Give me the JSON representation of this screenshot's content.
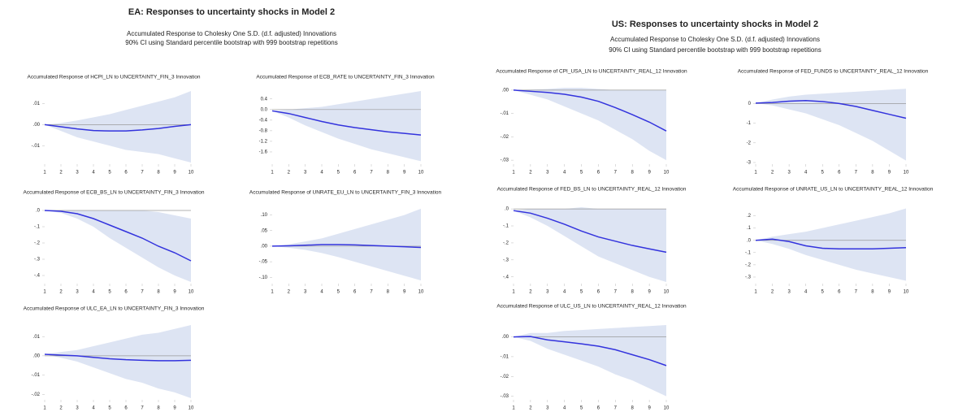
{
  "headers": [
    {
      "title": "EA: Responses to uncertainty shocks in Model 2",
      "notes": [
        "Accumulated Response to Cholesky One S.D. (d.f. adjusted) Innovations",
        "90% CI using Standard percentile bootstrap with 999 bootstrap repetitions"
      ]
    },
    {
      "title": "US: Responses to uncertainty shocks in Model 2",
      "notes": [
        "Accumulated Response to Cholesky One S.D. (d.f. adjusted) Innovations",
        "90% CI using Standard percentile bootstrap with 999 bootstrap repetitions"
      ]
    }
  ],
  "chart_data": [
    {
      "type": "line",
      "title": "Accumulated Response of HCPI_LN to UNCERTAINTY_FIN_3 Innovation",
      "color": "#3333dd",
      "band_color": "#dde4f3",
      "x": [
        1,
        2,
        3,
        4,
        5,
        6,
        7,
        8,
        9,
        10
      ],
      "xlim": [
        1,
        10
      ],
      "xticks": [
        1,
        2,
        3,
        4,
        5,
        6,
        7,
        8,
        9,
        10
      ],
      "values": [
        0,
        -0.001,
        -0.002,
        -0.0028,
        -0.003,
        -0.003,
        -0.0025,
        -0.0018,
        -0.0008,
        0
      ],
      "ci_upper": [
        0,
        0.0008,
        0.002,
        0.0035,
        0.005,
        0.007,
        0.009,
        0.011,
        0.013,
        0.016
      ],
      "ci_lower": [
        0,
        -0.003,
        -0.006,
        -0.008,
        -0.01,
        -0.012,
        -0.013,
        -0.014,
        -0.016,
        -0.018
      ],
      "ylim": [
        -0.018,
        0.016
      ],
      "yticks": [
        {
          "value": 0.01,
          "label": ".01"
        },
        {
          "value": 0,
          "label": ".00"
        },
        {
          "value": -0.01,
          "label": "-.01"
        }
      ]
    },
    {
      "type": "line",
      "title": "Accumulated Response of ECB_RATE to UNCERTAINTY_FIN_3 Innovation",
      "color": "#3333dd",
      "band_color": "#dde4f3",
      "x": [
        1,
        2,
        3,
        4,
        5,
        6,
        7,
        8,
        9,
        10
      ],
      "xlim": [
        1,
        10
      ],
      "xticks": [
        1,
        2,
        3,
        4,
        5,
        6,
        7,
        8,
        9,
        10
      ],
      "values": [
        -0.05,
        -0.15,
        -0.3,
        -0.45,
        -0.58,
        -0.68,
        -0.76,
        -0.84,
        -0.9,
        -0.96
      ],
      "ci_upper": [
        -0.05,
        0,
        0.05,
        0.1,
        0.2,
        0.3,
        0.4,
        0.5,
        0.6,
        0.7
      ],
      "ci_lower": [
        -0.05,
        -0.3,
        -0.6,
        -0.85,
        -1.1,
        -1.3,
        -1.5,
        -1.65,
        -1.8,
        -1.95
      ],
      "ylim": [
        -2.0,
        0.7
      ],
      "yticks": [
        0.4,
        {
          "value": 0,
          "label": "0.0"
        },
        -0.4,
        -0.8,
        -1.2,
        -1.6
      ]
    },
    {
      "type": "line",
      "title": "Accumulated Response of ECB_BS_LN to UNCERTAINTY_FIN_3 Innovation",
      "color": "#3333dd",
      "band_color": "#dde4f3",
      "x": [
        1,
        2,
        3,
        4,
        5,
        6,
        7,
        8,
        9,
        10
      ],
      "xlim": [
        1,
        10
      ],
      "xticks": [
        1,
        2,
        3,
        4,
        5,
        6,
        7,
        8,
        9,
        10
      ],
      "values": [
        0,
        -0.005,
        -0.02,
        -0.05,
        -0.09,
        -0.13,
        -0.17,
        -0.22,
        -0.26,
        -0.31
      ],
      "ci_upper": [
        0,
        0,
        0,
        0,
        0,
        0,
        0,
        -0.01,
        -0.03,
        -0.05
      ],
      "ci_lower": [
        0,
        -0.015,
        -0.05,
        -0.1,
        -0.17,
        -0.23,
        -0.29,
        -0.35,
        -0.4,
        -0.44
      ],
      "ylim": [
        -0.44,
        0.02
      ],
      "yticks": [
        {
          "value": 0,
          "label": ".0"
        },
        {
          "value": -0.1,
          "label": "-.1"
        },
        {
          "value": -0.2,
          "label": "-.2"
        },
        {
          "value": -0.3,
          "label": "-.3"
        },
        {
          "value": -0.4,
          "label": "-.4"
        }
      ]
    },
    {
      "type": "line",
      "title": "Accumulated Response of UNRATE_EU_LN to UNCERTAINTY_FIN_3 Innovation",
      "color": "#3333dd",
      "band_color": "#dde4f3",
      "x": [
        1,
        2,
        3,
        4,
        5,
        6,
        7,
        8,
        9,
        10
      ],
      "xlim": [
        1,
        10
      ],
      "xticks": [
        1,
        2,
        3,
        4,
        5,
        6,
        7,
        8,
        9,
        10
      ],
      "values": [
        0,
        0.001,
        0.003,
        0.005,
        0.005,
        0.004,
        0.002,
        0,
        -0.002,
        -0.004
      ],
      "ci_upper": [
        0,
        0.006,
        0.015,
        0.025,
        0.04,
        0.055,
        0.07,
        0.085,
        0.1,
        0.12
      ],
      "ci_lower": [
        0,
        -0.005,
        -0.012,
        -0.022,
        -0.035,
        -0.05,
        -0.065,
        -0.08,
        -0.095,
        -0.11
      ],
      "ylim": [
        -0.115,
        0.125
      ],
      "yticks": [
        {
          "value": 0.1,
          "label": ".10"
        },
        {
          "value": 0.05,
          "label": ".05"
        },
        {
          "value": 0,
          "label": ".00"
        },
        {
          "value": -0.05,
          "label": "-.05"
        },
        {
          "value": -0.1,
          "label": "-.10"
        }
      ]
    },
    {
      "type": "line",
      "title": "Accumulated Response of ULC_EA_LN to UNCERTAINTY_FIN_3 Innovation",
      "color": "#3333dd",
      "band_color": "#dde4f3",
      "x": [
        1,
        2,
        3,
        4,
        5,
        6,
        7,
        8,
        9,
        10
      ],
      "xlim": [
        1,
        10
      ],
      "xticks": [
        1,
        2,
        3,
        4,
        5,
        6,
        7,
        8,
        9,
        10
      ],
      "values": [
        0.0008,
        0.0004,
        0,
        -0.0008,
        -0.0015,
        -0.002,
        -0.0023,
        -0.0025,
        -0.0025,
        -0.0023
      ],
      "ci_upper": [
        0.0008,
        0.002,
        0.003,
        0.005,
        0.007,
        0.009,
        0.011,
        0.012,
        0.014,
        0.016
      ],
      "ci_lower": [
        0.0008,
        -0.001,
        -0.003,
        -0.006,
        -0.009,
        -0.012,
        -0.014,
        -0.017,
        -0.019,
        -0.022
      ],
      "ylim": [
        -0.022,
        0.016
      ],
      "yticks": [
        {
          "value": 0.01,
          "label": ".01"
        },
        {
          "value": 0,
          "label": ".00"
        },
        {
          "value": -0.01,
          "label": "-.01"
        },
        {
          "value": -0.02,
          "label": "-.02"
        }
      ]
    },
    {
      "type": "line",
      "title": "Accumulated Response of CPI_USA_LN to UNCERTAINTY_REAL_12 Innovation",
      "color": "#3333dd",
      "band_color": "#dde4f3",
      "x": [
        1,
        2,
        3,
        4,
        5,
        6,
        7,
        8,
        9,
        10
      ],
      "xlim": [
        1,
        10
      ],
      "xticks": [
        1,
        2,
        3,
        4,
        5,
        6,
        7,
        8,
        9,
        10
      ],
      "values": [
        0,
        -0.0005,
        -0.001,
        -0.0018,
        -0.003,
        -0.0048,
        -0.0075,
        -0.0105,
        -0.0137,
        -0.0175
      ],
      "ci_upper": [
        0,
        0.0002,
        0.0005,
        0.001,
        0.001,
        0.0005,
        0,
        0,
        0,
        0
      ],
      "ci_lower": [
        0,
        -0.002,
        -0.004,
        -0.007,
        -0.01,
        -0.013,
        -0.017,
        -0.021,
        -0.026,
        -0.03
      ],
      "ylim": [
        -0.031,
        0.001
      ],
      "yticks": [
        {
          "value": 0,
          "label": ".00"
        },
        {
          "value": -0.01,
          "label": "-.01"
        },
        {
          "value": -0.02,
          "label": "-.02"
        },
        {
          "value": -0.03,
          "label": "-.03"
        }
      ]
    },
    {
      "type": "line",
      "title": "Accumulated Response of FED_FUNDS to UNCERTAINTY_REAL_12 Innovation",
      "color": "#3333dd",
      "band_color": "#dde4f3",
      "x": [
        1,
        2,
        3,
        4,
        5,
        6,
        7,
        8,
        9,
        10
      ],
      "xlim": [
        1,
        10
      ],
      "xticks": [
        1,
        2,
        3,
        4,
        5,
        6,
        7,
        8,
        9,
        10
      ],
      "values": [
        0.02,
        0.05,
        0.12,
        0.15,
        0.1,
        0,
        -0.15,
        -0.35,
        -0.55,
        -0.75
      ],
      "ci_upper": [
        0.02,
        0.2,
        0.35,
        0.45,
        0.5,
        0.55,
        0.6,
        0.65,
        0.7,
        0.75
      ],
      "ci_lower": [
        0.02,
        -0.1,
        -0.3,
        -0.5,
        -0.8,
        -1.1,
        -1.5,
        -1.9,
        -2.4,
        -2.9
      ],
      "ylim": [
        -3.0,
        0.8
      ],
      "yticks": [
        0,
        -1,
        -2,
        -3
      ]
    },
    {
      "type": "line",
      "title": "Accumulated Response of FED_BS_LN to UNCERTAINTY_REAL_12 Innovation",
      "color": "#3333dd",
      "band_color": "#dde4f3",
      "x": [
        1,
        2,
        3,
        4,
        5,
        6,
        7,
        8,
        9,
        10
      ],
      "xlim": [
        1,
        10
      ],
      "xticks": [
        1,
        2,
        3,
        4,
        5,
        6,
        7,
        8,
        9,
        10
      ],
      "values": [
        -0.01,
        -0.025,
        -0.055,
        -0.09,
        -0.13,
        -0.165,
        -0.19,
        -0.215,
        -0.235,
        -0.255
      ],
      "ci_upper": [
        -0.01,
        0,
        0,
        0,
        0.01,
        0,
        0,
        0,
        0,
        0
      ],
      "ci_lower": [
        -0.01,
        -0.05,
        -0.1,
        -0.16,
        -0.22,
        -0.28,
        -0.32,
        -0.36,
        -0.4,
        -0.43
      ],
      "ylim": [
        -0.43,
        0.01
      ],
      "yticks": [
        {
          "value": 0,
          "label": ".0"
        },
        {
          "value": -0.1,
          "label": "-.1"
        },
        {
          "value": -0.2,
          "label": "-.2"
        },
        {
          "value": -0.3,
          "label": "-.3"
        },
        {
          "value": -0.4,
          "label": "-.4"
        }
      ]
    },
    {
      "type": "line",
      "title": "Accumulated Response of UNRATE_US_LN to UNCERTAINTY_REAL_12 Innovation",
      "color": "#3333dd",
      "band_color": "#dde4f3",
      "x": [
        1,
        2,
        3,
        4,
        5,
        6,
        7,
        8,
        9,
        10
      ],
      "xlim": [
        1,
        10
      ],
      "xticks": [
        1,
        2,
        3,
        4,
        5,
        6,
        7,
        8,
        9,
        10
      ],
      "values": [
        0,
        0.01,
        -0.01,
        -0.045,
        -0.065,
        -0.07,
        -0.07,
        -0.07,
        -0.065,
        -0.06
      ],
      "ci_upper": [
        0,
        0.03,
        0.05,
        0.07,
        0.1,
        0.13,
        0.16,
        0.19,
        0.22,
        0.26
      ],
      "ci_lower": [
        0,
        -0.03,
        -0.07,
        -0.12,
        -0.16,
        -0.2,
        -0.24,
        -0.27,
        -0.3,
        -0.33
      ],
      "ylim": [
        -0.34,
        0.27
      ],
      "yticks": [
        {
          "value": 0.2,
          "label": ".2"
        },
        {
          "value": 0.1,
          "label": ".1"
        },
        {
          "value": 0,
          "label": ".0"
        },
        {
          "value": -0.1,
          "label": "-.1"
        },
        {
          "value": -0.2,
          "label": "-.2"
        },
        {
          "value": -0.3,
          "label": "-.3"
        }
      ]
    },
    {
      "type": "line",
      "title": "Accumulated Response of ULC_US_LN to UNCERTAINTY_REAL_12 Innovation",
      "color": "#3333dd",
      "band_color": "#dde4f3",
      "x": [
        1,
        2,
        3,
        4,
        5,
        6,
        7,
        8,
        9,
        10
      ],
      "xlim": [
        1,
        10
      ],
      "xticks": [
        1,
        2,
        3,
        4,
        5,
        6,
        7,
        8,
        9,
        10
      ],
      "values": [
        0,
        0.0002,
        -0.0015,
        -0.0025,
        -0.0035,
        -0.0047,
        -0.0065,
        -0.009,
        -0.0115,
        -0.0145
      ],
      "ci_upper": [
        0,
        0.002,
        0.002,
        0.003,
        0.0035,
        0.004,
        0.0045,
        0.005,
        0.0055,
        0.006
      ],
      "ci_lower": [
        0,
        -0.002,
        -0.006,
        -0.009,
        -0.012,
        -0.015,
        -0.019,
        -0.022,
        -0.026,
        -0.03
      ],
      "ylim": [
        -0.031,
        0.006
      ],
      "yticks": [
        {
          "value": 0,
          "label": ".00"
        },
        {
          "value": -0.01,
          "label": "-.01"
        },
        {
          "value": -0.02,
          "label": "-.02"
        },
        {
          "value": -0.03,
          "label": "-.03"
        }
      ]
    }
  ]
}
